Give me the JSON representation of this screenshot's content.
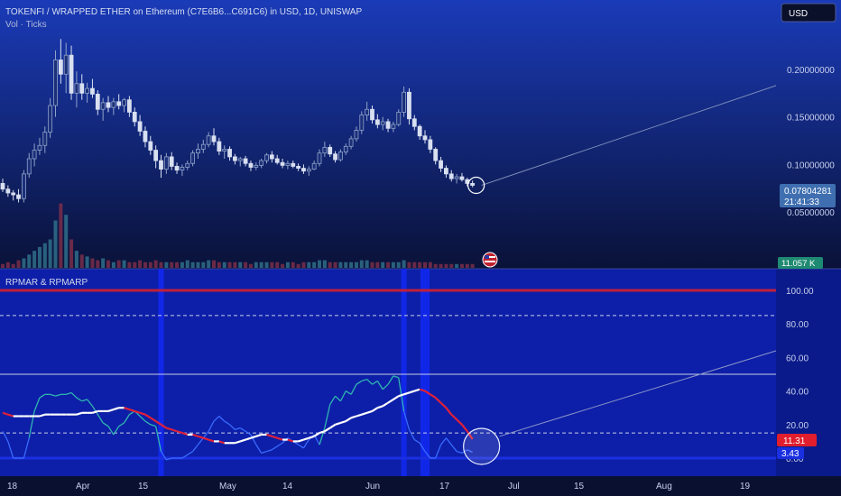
{
  "header": {
    "title": "TOKENFI / WRAPPED ETHER on Ethereum (C7E6B6...C691C6) in USD, 1D, UNISWAP",
    "volume_label": "Vol · Ticks",
    "currency_button": "USD"
  },
  "colors": {
    "up": "#8fa3c8",
    "down": "#d8dff0",
    "volume_up": "#2f6f8a",
    "volume_down": "#7a2e4a",
    "oscillator_bg": "#0d1fa8",
    "blue_band": "#1127e8",
    "rpmar_cyan": "#2fb6b0",
    "rpmar_blue": "#3a6bff",
    "ma_white": "#ffffff",
    "ma_red": "#e0203a",
    "upper_band": "#c0203a",
    "price_badge": "#3f6fb0",
    "volume_badge": "#1f8a72",
    "red_badge": "#e01e2e",
    "blue_badge": "#1a2fe0"
  },
  "price_panel": {
    "current_price_label": "0.07804281",
    "countdown_label": "21:41:33",
    "volume_value_label": "11.057 K",
    "flag_icon": "us-flag-icon",
    "highlight_circle_icon": "circle-marker-icon"
  },
  "oscillator": {
    "title": "RPMAR & RPMARP",
    "rpmar_value_label": "11.31",
    "rpmarp_value_label": "3.43",
    "highlight_circle_icon": "circle-marker-icon"
  },
  "chart_data": [
    {
      "type": "candlestick",
      "title": "TOKENFI / WRAPPED ETHER on Ethereum (C7E6B6...C691C6) in USD, 1D, UNISWAP",
      "y_tick_labels": [
        "0.05000000",
        "0.10000000",
        "0.15000000",
        "0.20000000"
      ],
      "y_ticks": [
        0.05,
        0.1,
        0.15,
        0.2
      ],
      "ylim": [
        0.0,
        0.23
      ],
      "x_tick_labels": [
        "18",
        "Apr",
        "15",
        "May",
        "14",
        "Jun",
        "17",
        "Jul",
        "15",
        "Aug",
        "19"
      ],
      "grid": false,
      "last_price": 0.07804281,
      "candles_ohlc": [
        [
          0.08,
          0.085,
          0.071,
          0.074
        ],
        [
          0.074,
          0.078,
          0.066,
          0.07
        ],
        [
          0.07,
          0.073,
          0.062,
          0.068
        ],
        [
          0.068,
          0.074,
          0.06,
          0.064
        ],
        [
          0.064,
          0.094,
          0.06,
          0.09
        ],
        [
          0.09,
          0.112,
          0.086,
          0.106
        ],
        [
          0.106,
          0.122,
          0.098,
          0.115
        ],
        [
          0.115,
          0.128,
          0.11,
          0.12
        ],
        [
          0.12,
          0.14,
          0.112,
          0.134
        ],
        [
          0.134,
          0.17,
          0.128,
          0.162
        ],
        [
          0.162,
          0.22,
          0.15,
          0.21
        ],
        [
          0.21,
          0.232,
          0.185,
          0.195
        ],
        [
          0.195,
          0.228,
          0.175,
          0.215
        ],
        [
          0.215,
          0.225,
          0.168,
          0.175
        ],
        [
          0.175,
          0.198,
          0.16,
          0.185
        ],
        [
          0.185,
          0.195,
          0.168,
          0.175
        ],
        [
          0.175,
          0.186,
          0.165,
          0.18
        ],
        [
          0.18,
          0.19,
          0.17,
          0.174
        ],
        [
          0.174,
          0.178,
          0.152,
          0.158
        ],
        [
          0.158,
          0.17,
          0.146,
          0.165
        ],
        [
          0.165,
          0.172,
          0.155,
          0.16
        ],
        [
          0.16,
          0.17,
          0.152,
          0.166
        ],
        [
          0.166,
          0.174,
          0.158,
          0.162
        ],
        [
          0.162,
          0.17,
          0.155,
          0.168
        ],
        [
          0.168,
          0.172,
          0.15,
          0.155
        ],
        [
          0.155,
          0.16,
          0.14,
          0.145
        ],
        [
          0.145,
          0.152,
          0.13,
          0.135
        ],
        [
          0.135,
          0.14,
          0.118,
          0.124
        ],
        [
          0.124,
          0.13,
          0.11,
          0.115
        ],
        [
          0.115,
          0.12,
          0.096,
          0.104
        ],
        [
          0.104,
          0.11,
          0.086,
          0.095
        ],
        [
          0.095,
          0.112,
          0.09,
          0.108
        ],
        [
          0.108,
          0.113,
          0.094,
          0.098
        ],
        [
          0.098,
          0.102,
          0.09,
          0.094
        ],
        [
          0.094,
          0.1,
          0.088,
          0.097
        ],
        [
          0.097,
          0.104,
          0.094,
          0.101
        ],
        [
          0.101,
          0.115,
          0.098,
          0.112
        ],
        [
          0.112,
          0.122,
          0.106,
          0.116
        ],
        [
          0.116,
          0.126,
          0.112,
          0.121
        ],
        [
          0.121,
          0.134,
          0.118,
          0.13
        ],
        [
          0.13,
          0.138,
          0.12,
          0.124
        ],
        [
          0.124,
          0.128,
          0.11,
          0.114
        ],
        [
          0.114,
          0.12,
          0.106,
          0.116
        ],
        [
          0.116,
          0.119,
          0.104,
          0.108
        ],
        [
          0.108,
          0.111,
          0.1,
          0.104
        ],
        [
          0.104,
          0.108,
          0.098,
          0.106
        ],
        [
          0.106,
          0.109,
          0.098,
          0.101
        ],
        [
          0.101,
          0.104,
          0.093,
          0.097
        ],
        [
          0.097,
          0.102,
          0.094,
          0.099
        ],
        [
          0.099,
          0.106,
          0.096,
          0.104
        ],
        [
          0.104,
          0.112,
          0.101,
          0.11
        ],
        [
          0.11,
          0.114,
          0.102,
          0.106
        ],
        [
          0.106,
          0.11,
          0.1,
          0.102
        ],
        [
          0.102,
          0.106,
          0.096,
          0.099
        ],
        [
          0.099,
          0.104,
          0.095,
          0.101
        ],
        [
          0.101,
          0.104,
          0.096,
          0.098
        ],
        [
          0.098,
          0.101,
          0.093,
          0.096
        ],
        [
          0.096,
          0.1,
          0.09,
          0.093
        ],
        [
          0.093,
          0.098,
          0.088,
          0.095
        ],
        [
          0.095,
          0.104,
          0.094,
          0.101
        ],
        [
          0.101,
          0.116,
          0.098,
          0.112
        ],
        [
          0.112,
          0.124,
          0.108,
          0.118
        ],
        [
          0.118,
          0.121,
          0.108,
          0.111
        ],
        [
          0.111,
          0.114,
          0.102,
          0.105
        ],
        [
          0.105,
          0.116,
          0.103,
          0.113
        ],
        [
          0.113,
          0.122,
          0.11,
          0.119
        ],
        [
          0.119,
          0.13,
          0.116,
          0.127
        ],
        [
          0.127,
          0.14,
          0.124,
          0.136
        ],
        [
          0.136,
          0.156,
          0.132,
          0.152
        ],
        [
          0.152,
          0.166,
          0.146,
          0.158
        ],
        [
          0.158,
          0.162,
          0.143,
          0.147
        ],
        [
          0.147,
          0.153,
          0.138,
          0.142
        ],
        [
          0.142,
          0.15,
          0.136,
          0.145
        ],
        [
          0.145,
          0.148,
          0.134,
          0.138
        ],
        [
          0.138,
          0.145,
          0.134,
          0.142
        ],
        [
          0.142,
          0.158,
          0.14,
          0.155
        ],
        [
          0.155,
          0.182,
          0.15,
          0.176
        ],
        [
          0.176,
          0.18,
          0.142,
          0.148
        ],
        [
          0.148,
          0.152,
          0.136,
          0.14
        ],
        [
          0.14,
          0.142,
          0.126,
          0.13
        ],
        [
          0.13,
          0.136,
          0.122,
          0.126
        ],
        [
          0.126,
          0.13,
          0.112,
          0.116
        ],
        [
          0.116,
          0.118,
          0.1,
          0.104
        ],
        [
          0.104,
          0.108,
          0.092,
          0.096
        ],
        [
          0.096,
          0.099,
          0.086,
          0.09
        ],
        [
          0.09,
          0.094,
          0.082,
          0.085
        ],
        [
          0.085,
          0.09,
          0.08,
          0.087
        ],
        [
          0.087,
          0.091,
          0.082,
          0.084
        ],
        [
          0.084,
          0.086,
          0.077,
          0.08
        ],
        [
          0.08,
          0.083,
          0.076,
          0.078
        ]
      ],
      "volume": [
        2,
        3,
        2,
        4,
        5,
        7,
        9,
        11,
        13,
        15,
        25,
        34,
        28,
        15,
        9,
        7,
        6,
        5,
        4,
        5,
        4,
        3,
        4,
        4,
        3,
        3,
        4,
        3,
        3,
        4,
        3,
        3,
        3,
        3,
        3,
        4,
        3,
        3,
        3,
        4,
        4,
        3,
        3,
        3,
        3,
        3,
        3,
        2,
        3,
        3,
        3,
        3,
        3,
        2,
        3,
        3,
        2,
        3,
        3,
        3,
        4,
        4,
        3,
        3,
        3,
        3,
        3,
        3,
        4,
        4,
        3,
        3,
        3,
        3,
        3,
        3,
        4,
        3,
        3,
        3,
        3,
        3,
        2,
        2,
        2,
        2,
        2,
        2,
        2,
        2
      ],
      "volume_note": ""
    },
    {
      "type": "line",
      "title": "RPMAR & RPMARP",
      "y_tick_labels": [
        "0.00",
        "20.00",
        "40.00",
        "60.00",
        "80.00",
        "100.00"
      ],
      "y_ticks": [
        0,
        20,
        40,
        60,
        80,
        100
      ],
      "ylim": [
        -1,
        106
      ],
      "reference_lines": [
        {
          "value": 100,
          "style": "solid"
        },
        {
          "value": 85,
          "style": "dashed"
        },
        {
          "value": 50,
          "style": "solid"
        },
        {
          "value": 15,
          "style": "dashed"
        },
        {
          "value": 0,
          "style": "solid"
        }
      ],
      "last_values": [
        11.31,
        3.43
      ],
      "series": [
        {
          "name": "",
          "role": "oscillator",
          "values": [
            16,
            10,
            0,
            0,
            0,
            12,
            28,
            36,
            38,
            38,
            37,
            38,
            38,
            39,
            36,
            34,
            35,
            31,
            26,
            21,
            19,
            14,
            19,
            21,
            26,
            28,
            25,
            22,
            20,
            19,
            4,
            -1,
            0,
            0,
            0,
            2,
            4,
            8,
            12,
            16,
            22,
            25,
            22,
            20,
            17,
            18,
            16,
            14,
            8,
            3,
            4,
            5,
            7,
            9,
            12,
            10,
            8,
            6,
            11,
            14,
            8,
            18,
            32,
            37,
            34,
            40,
            38,
            44,
            46,
            47,
            44,
            46,
            41,
            44,
            49,
            48,
            28,
            17,
            11,
            9,
            4,
            0,
            0,
            8,
            12,
            8,
            4,
            3,
            5,
            3.43
          ]
        },
        {
          "name": "",
          "role": "moving-average",
          "values": [
            27,
            26,
            25,
            25,
            25,
            25,
            25,
            25,
            26,
            26,
            26,
            26,
            26,
            26,
            26,
            27,
            27,
            27,
            28,
            28,
            28,
            29,
            30,
            30,
            29,
            28,
            27,
            26,
            24,
            22,
            20,
            18,
            17,
            16,
            15,
            14,
            14,
            13,
            12,
            11,
            10,
            10,
            9,
            9,
            9,
            10,
            11,
            12,
            13,
            14,
            14,
            13,
            12,
            11,
            11,
            10,
            10,
            11,
            12,
            13,
            15,
            16,
            18,
            20,
            21,
            22,
            24,
            25,
            26,
            27,
            28,
            30,
            31,
            33,
            35,
            37,
            38,
            39,
            40,
            41,
            40,
            38,
            36,
            33,
            30,
            26,
            23,
            20,
            16,
            11.31
          ]
        }
      ],
      "blue_band_indices": [
        30,
        76,
        80
      ]
    }
  ]
}
